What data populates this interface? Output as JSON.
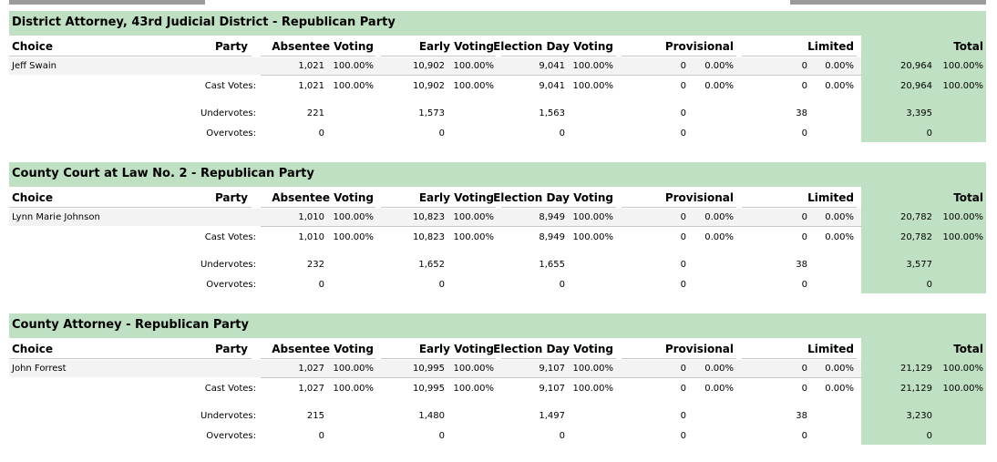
{
  "columns": {
    "choice": "Choice",
    "party": "Party",
    "absentee": "Absentee Voting",
    "early": "Early Voting",
    "election_day": "Election Day Voting",
    "provisional": "Provisional",
    "limited": "Limited",
    "total": "Total"
  },
  "labels": {
    "cast_votes": "Cast Votes:",
    "undervotes": "Undervotes:",
    "overvotes": "Overvotes:"
  },
  "races": [
    {
      "title": "District Attorney, 43rd Judicial District - Republican Party",
      "candidate": {
        "name": "Jeff Swain",
        "absentee": "1,021",
        "absentee_pct": "100.00%",
        "early": "10,902",
        "early_pct": "100.00%",
        "election_day": "9,041",
        "election_day_pct": "100.00%",
        "provisional": "0",
        "provisional_pct": "0.00%",
        "limited": "0",
        "limited_pct": "0.00%",
        "total": "20,964",
        "total_pct": "100.00%"
      },
      "cast": {
        "absentee": "1,021",
        "absentee_pct": "100.00%",
        "early": "10,902",
        "early_pct": "100.00%",
        "election_day": "9,041",
        "election_day_pct": "100.00%",
        "provisional": "0",
        "provisional_pct": "0.00%",
        "limited": "0",
        "limited_pct": "0.00%",
        "total": "20,964",
        "total_pct": "100.00%"
      },
      "undervotes": {
        "absentee": "221",
        "early": "1,573",
        "election_day": "1,563",
        "provisional": "0",
        "limited": "38",
        "total": "3,395"
      },
      "overvotes": {
        "absentee": "0",
        "early": "0",
        "election_day": "0",
        "provisional": "0",
        "limited": "0",
        "total": "0"
      }
    },
    {
      "title": "County Court at Law No. 2 - Republican Party",
      "candidate": {
        "name": "Lynn Marie Johnson",
        "absentee": "1,010",
        "absentee_pct": "100.00%",
        "early": "10,823",
        "early_pct": "100.00%",
        "election_day": "8,949",
        "election_day_pct": "100.00%",
        "provisional": "0",
        "provisional_pct": "0.00%",
        "limited": "0",
        "limited_pct": "0.00%",
        "total": "20,782",
        "total_pct": "100.00%"
      },
      "cast": {
        "absentee": "1,010",
        "absentee_pct": "100.00%",
        "early": "10,823",
        "early_pct": "100.00%",
        "election_day": "8,949",
        "election_day_pct": "100.00%",
        "provisional": "0",
        "provisional_pct": "0.00%",
        "limited": "0",
        "limited_pct": "0.00%",
        "total": "20,782",
        "total_pct": "100.00%"
      },
      "undervotes": {
        "absentee": "232",
        "early": "1,652",
        "election_day": "1,655",
        "provisional": "0",
        "limited": "38",
        "total": "3,577"
      },
      "overvotes": {
        "absentee": "0",
        "early": "0",
        "election_day": "0",
        "provisional": "0",
        "limited": "0",
        "total": "0"
      }
    },
    {
      "title": "County Attorney - Republican Party",
      "candidate": {
        "name": "John Forrest",
        "absentee": "1,027",
        "absentee_pct": "100.00%",
        "early": "10,995",
        "early_pct": "100.00%",
        "election_day": "9,107",
        "election_day_pct": "100.00%",
        "provisional": "0",
        "provisional_pct": "0.00%",
        "limited": "0",
        "limited_pct": "0.00%",
        "total": "21,129",
        "total_pct": "100.00%"
      },
      "cast": {
        "absentee": "1,027",
        "absentee_pct": "100.00%",
        "early": "10,995",
        "early_pct": "100.00%",
        "election_day": "9,107",
        "election_day_pct": "100.00%",
        "provisional": "0",
        "provisional_pct": "0.00%",
        "limited": "0",
        "limited_pct": "0.00%",
        "total": "21,129",
        "total_pct": "100.00%"
      },
      "undervotes": {
        "absentee": "215",
        "early": "1,480",
        "election_day": "1,497",
        "provisional": "0",
        "limited": "38",
        "total": "3,230"
      },
      "overvotes": {
        "absentee": "0",
        "early": "0",
        "election_day": "0",
        "provisional": "0",
        "limited": "0",
        "total": "0"
      }
    }
  ]
}
